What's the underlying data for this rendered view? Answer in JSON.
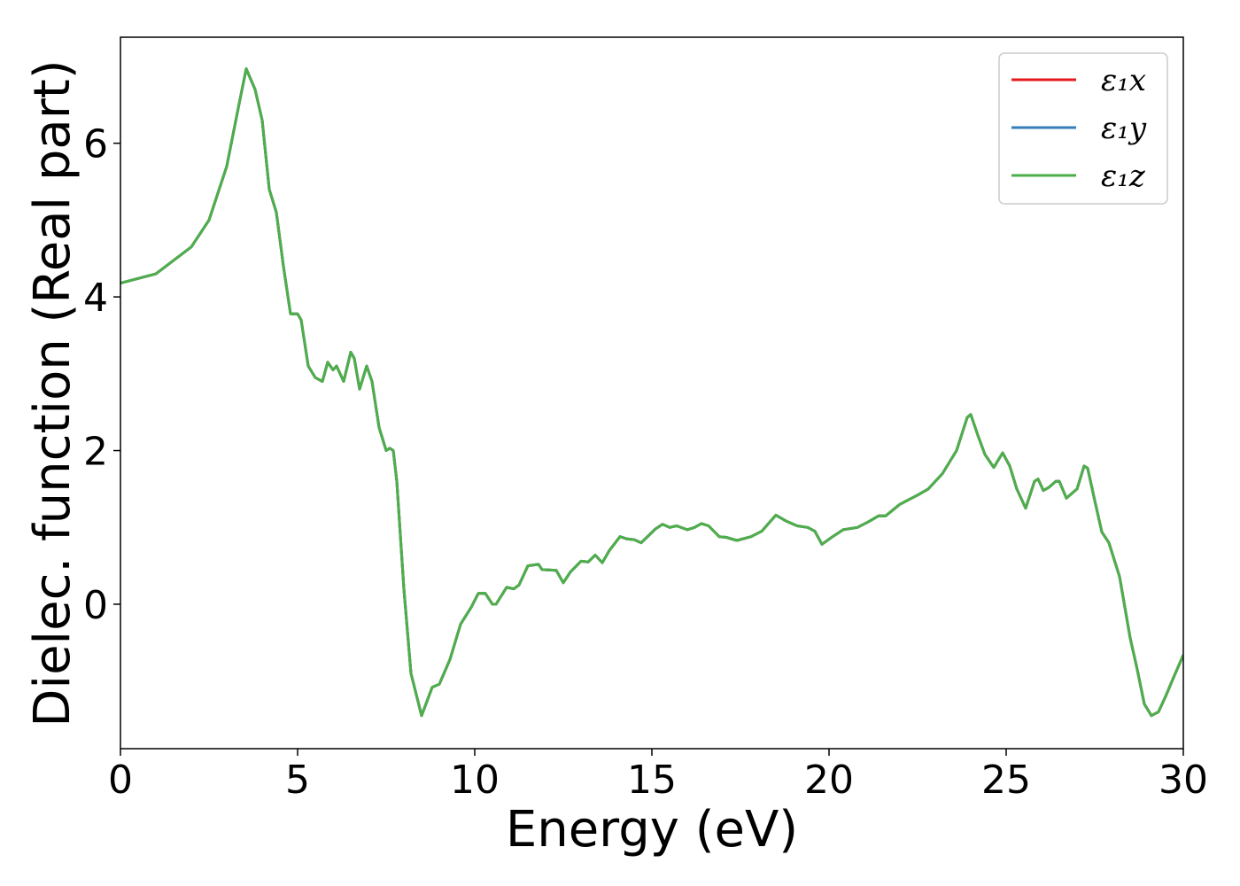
{
  "chart_data": {
    "type": "line",
    "xlabel": "Energy (eV)",
    "ylabel": "Dielec. function (Real part)",
    "x": [
      0,
      1,
      2,
      2.5,
      3,
      3.3,
      3.55,
      3.8,
      4.0,
      4.2,
      4.4,
      4.6,
      4.8,
      5.0,
      5.1,
      5.3,
      5.5,
      5.7,
      5.85,
      6.0,
      6.1,
      6.3,
      6.5,
      6.6,
      6.75,
      6.95,
      7.1,
      7.3,
      7.5,
      7.6,
      7.7,
      7.8,
      7.9,
      8.0,
      8.2,
      8.5,
      8.8,
      9.0,
      9.3,
      9.6,
      9.9,
      10.1,
      10.3,
      10.5,
      10.6,
      10.9,
      11.1,
      11.25,
      11.5,
      11.8,
      11.9,
      12.3,
      12.5,
      12.7,
      13.0,
      13.2,
      13.4,
      13.6,
      13.8,
      14.1,
      14.3,
      14.5,
      14.7,
      15.1,
      15.3,
      15.5,
      15.7,
      16.0,
      16.2,
      16.4,
      16.6,
      16.9,
      17.1,
      17.4,
      17.8,
      18.1,
      18.5,
      18.8,
      19.1,
      19.4,
      19.6,
      19.8,
      20.1,
      20.4,
      20.8,
      21.1,
      21.4,
      21.6,
      22.0,
      22.5,
      22.8,
      23.2,
      23.6,
      23.9,
      24.0,
      24.2,
      24.4,
      24.65,
      24.9,
      25.1,
      25.3,
      25.55,
      25.8,
      25.9,
      26.05,
      26.2,
      26.4,
      26.5,
      26.7,
      27.0,
      27.2,
      27.3,
      27.5,
      27.7,
      27.9,
      28.2,
      28.5,
      28.7,
      28.9,
      29.1,
      29.3,
      29.5,
      29.7,
      30
    ],
    "series": [
      {
        "name": "ε₁x",
        "color": "#e41a1c",
        "values": [
          4.18,
          4.3,
          4.65,
          5.0,
          5.7,
          6.4,
          6.97,
          6.7,
          6.3,
          5.4,
          5.1,
          4.4,
          3.78,
          3.78,
          3.7,
          3.1,
          2.95,
          2.9,
          3.15,
          3.05,
          3.1,
          2.9,
          3.28,
          3.2,
          2.8,
          3.1,
          2.9,
          2.3,
          2.0,
          2.03,
          2.0,
          1.6,
          0.9,
          0.2,
          -0.9,
          -1.45,
          -1.08,
          -1.04,
          -0.72,
          -0.26,
          -0.04,
          0.14,
          0.14,
          0.0,
          0.0,
          0.22,
          0.2,
          0.25,
          0.5,
          0.52,
          0.45,
          0.44,
          0.28,
          0.42,
          0.56,
          0.55,
          0.64,
          0.54,
          0.7,
          0.88,
          0.85,
          0.84,
          0.8,
          0.98,
          1.04,
          1.0,
          1.02,
          0.97,
          1.0,
          1.05,
          1.02,
          0.88,
          0.87,
          0.83,
          0.88,
          0.95,
          1.16,
          1.08,
          1.02,
          1.0,
          0.95,
          0.78,
          0.88,
          0.97,
          1.0,
          1.07,
          1.15,
          1.15,
          1.3,
          1.42,
          1.5,
          1.7,
          2.0,
          2.43,
          2.47,
          2.2,
          1.95,
          1.78,
          1.97,
          1.8,
          1.5,
          1.25,
          1.6,
          1.63,
          1.48,
          1.52,
          1.6,
          1.6,
          1.38,
          1.5,
          1.8,
          1.77,
          1.35,
          0.94,
          0.8,
          0.36,
          -0.44,
          -0.85,
          -1.3,
          -1.45,
          -1.4,
          -1.2,
          -0.98,
          -0.66
        ]
      },
      {
        "name": "ε₁y",
        "color": "#377eb8",
        "values": [
          4.18,
          4.3,
          4.65,
          5.0,
          5.7,
          6.4,
          6.97,
          6.7,
          6.3,
          5.4,
          5.1,
          4.4,
          3.78,
          3.78,
          3.7,
          3.1,
          2.95,
          2.9,
          3.15,
          3.05,
          3.1,
          2.9,
          3.28,
          3.2,
          2.8,
          3.1,
          2.9,
          2.3,
          2.0,
          2.03,
          2.0,
          1.6,
          0.9,
          0.2,
          -0.9,
          -1.45,
          -1.08,
          -1.04,
          -0.72,
          -0.26,
          -0.04,
          0.14,
          0.14,
          0.0,
          0.0,
          0.22,
          0.2,
          0.25,
          0.5,
          0.52,
          0.45,
          0.44,
          0.28,
          0.42,
          0.56,
          0.55,
          0.64,
          0.54,
          0.7,
          0.88,
          0.85,
          0.84,
          0.8,
          0.98,
          1.04,
          1.0,
          1.02,
          0.97,
          1.0,
          1.05,
          1.02,
          0.88,
          0.87,
          0.83,
          0.88,
          0.95,
          1.16,
          1.08,
          1.02,
          1.0,
          0.95,
          0.78,
          0.88,
          0.97,
          1.0,
          1.07,
          1.15,
          1.15,
          1.3,
          1.42,
          1.5,
          1.7,
          2.0,
          2.43,
          2.47,
          2.2,
          1.95,
          1.78,
          1.97,
          1.8,
          1.5,
          1.25,
          1.6,
          1.63,
          1.48,
          1.52,
          1.6,
          1.6,
          1.38,
          1.5,
          1.8,
          1.77,
          1.35,
          0.94,
          0.8,
          0.36,
          -0.44,
          -0.85,
          -1.3,
          -1.45,
          -1.4,
          -1.2,
          -0.98,
          -0.66
        ]
      },
      {
        "name": "ε₁z",
        "color": "#4daf4a",
        "values": [
          4.18,
          4.3,
          4.65,
          5.0,
          5.7,
          6.4,
          6.97,
          6.7,
          6.3,
          5.4,
          5.1,
          4.4,
          3.78,
          3.78,
          3.7,
          3.1,
          2.95,
          2.9,
          3.15,
          3.05,
          3.1,
          2.9,
          3.28,
          3.2,
          2.8,
          3.1,
          2.9,
          2.3,
          2.0,
          2.03,
          2.0,
          1.6,
          0.9,
          0.2,
          -0.9,
          -1.45,
          -1.08,
          -1.04,
          -0.72,
          -0.26,
          -0.04,
          0.14,
          0.14,
          0.0,
          0.0,
          0.22,
          0.2,
          0.25,
          0.5,
          0.52,
          0.45,
          0.44,
          0.28,
          0.42,
          0.56,
          0.55,
          0.64,
          0.54,
          0.7,
          0.88,
          0.85,
          0.84,
          0.8,
          0.98,
          1.04,
          1.0,
          1.02,
          0.97,
          1.0,
          1.05,
          1.02,
          0.88,
          0.87,
          0.83,
          0.88,
          0.95,
          1.16,
          1.08,
          1.02,
          1.0,
          0.95,
          0.78,
          0.88,
          0.97,
          1.0,
          1.07,
          1.15,
          1.15,
          1.3,
          1.42,
          1.5,
          1.7,
          2.0,
          2.43,
          2.47,
          2.2,
          1.95,
          1.78,
          1.97,
          1.8,
          1.5,
          1.25,
          1.6,
          1.63,
          1.48,
          1.52,
          1.6,
          1.6,
          1.38,
          1.5,
          1.8,
          1.77,
          1.35,
          0.94,
          0.8,
          0.36,
          -0.44,
          -0.85,
          -1.3,
          -1.45,
          -1.4,
          -1.2,
          -0.98,
          -0.66
        ]
      }
    ],
    "xlim": [
      0,
      30
    ],
    "ylim": [
      -1.88,
      7.38
    ],
    "xticks": [
      0,
      5,
      10,
      15,
      20,
      25,
      30
    ],
    "yticks": [
      0,
      2,
      4,
      6
    ],
    "grid": false,
    "legend": "upper right"
  }
}
